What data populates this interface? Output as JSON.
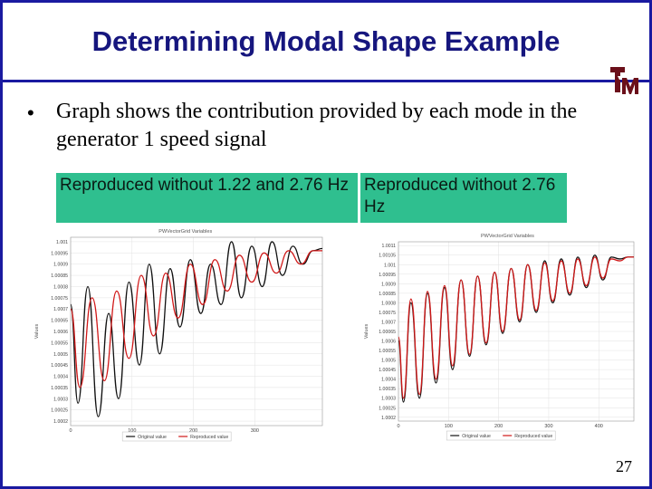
{
  "slide": {
    "title": "Determining Modal Shape Example",
    "bullet": "Graph shows the contribution provided by each mode in the generator 1 speed signal",
    "page_number": "27",
    "logo": {
      "icon": "tamu-logo-icon",
      "color": "#6b0f1a"
    },
    "accent_color": "#1a1aa0",
    "label_box_color": "#2fbf8f"
  },
  "labels": {
    "left": "Reproduced without 1.22 and 2.76 Hz",
    "right": "Reproduced without 2.76 Hz"
  },
  "chart_data": [
    {
      "type": "line",
      "title": "PWVectorGrid Variables",
      "ylabel": "Values",
      "xlabel": "",
      "x_ticks": [
        "0",
        "100",
        "200",
        "300"
      ],
      "y_ticks": [
        "1.001",
        "1.00095",
        "1.0009",
        "1.00085",
        "1.0008",
        "1.00075",
        "1.0007",
        "1.00065",
        "1.0006",
        "1.00055",
        "1.0005",
        "1.00045",
        "1.0004",
        "1.00035",
        "1.0003",
        "1.00025",
        "1.0002"
      ],
      "xlim": [
        0,
        410
      ],
      "ylim": [
        1.00018,
        1.00102
      ],
      "grid": true,
      "legend": [
        "Original value",
        "Reproduced value"
      ],
      "legend_position": "bottom",
      "series": [
        {
          "name": "Original value",
          "color": "#111111",
          "x": [
            0,
            12,
            28,
            45,
            62,
            78,
            95,
            112,
            128,
            145,
            162,
            178,
            195,
            212,
            228,
            245,
            262,
            278,
            295,
            312,
            328,
            345,
            362,
            378,
            395,
            410
          ],
          "y": [
            1.00072,
            1.00028,
            1.0008,
            1.00022,
            1.00068,
            1.0003,
            1.00082,
            1.00045,
            1.0009,
            1.0005,
            1.00088,
            1.00062,
            1.00092,
            1.00068,
            1.0009,
            1.00072,
            1.001,
            1.00075,
            1.00098,
            1.0008,
            1.001,
            1.00085,
            1.00098,
            1.0009,
            1.00096,
            1.00097
          ]
        },
        {
          "name": "Reproduced value",
          "color": "#d01818",
          "x": [
            0,
            15,
            35,
            55,
            75,
            95,
            115,
            135,
            155,
            175,
            195,
            215,
            235,
            255,
            275,
            295,
            315,
            335,
            355,
            375,
            395,
            410
          ],
          "y": [
            1.0007,
            1.00035,
            1.00075,
            1.00038,
            1.00078,
            1.00048,
            1.00085,
            1.00058,
            1.00086,
            1.00066,
            1.0009,
            1.00072,
            1.00092,
            1.00078,
            1.00094,
            1.00082,
            1.00095,
            1.00086,
            1.00096,
            1.0009,
            1.00096,
            1.00096
          ]
        }
      ]
    },
    {
      "type": "line",
      "title": "PWVectorGrid Variables",
      "ylabel": "Values",
      "xlabel": "",
      "x_ticks": [
        "0",
        "100",
        "200",
        "300",
        "400"
      ],
      "y_ticks": [
        "1.0011",
        "1.00105",
        "1.001",
        "1.00095",
        "1.0009",
        "1.00085",
        "1.0008",
        "1.00075",
        "1.0007",
        "1.00065",
        "1.0006",
        "1.00055",
        "1.0005",
        "1.00045",
        "1.0004",
        "1.00035",
        "1.0003",
        "1.00025",
        "1.0002"
      ],
      "xlim": [
        0,
        470
      ],
      "ylim": [
        1.00018,
        1.00112
      ],
      "grid": true,
      "legend": [
        "Original value",
        "Reproduced value"
      ],
      "legend_position": "bottom",
      "series": [
        {
          "name": "Original value",
          "color": "#111111",
          "x": [
            0,
            10,
            25,
            42,
            58,
            75,
            92,
            108,
            125,
            142,
            158,
            175,
            192,
            208,
            225,
            242,
            258,
            275,
            292,
            308,
            325,
            342,
            358,
            375,
            392,
            408,
            425,
            442,
            458,
            470
          ],
          "y": [
            1.0006,
            1.00028,
            1.0008,
            1.0003,
            1.00085,
            1.00038,
            1.00088,
            1.00045,
            1.00092,
            1.00052,
            1.00094,
            1.00058,
            1.00096,
            1.00064,
            1.00098,
            1.0007,
            1.001,
            1.00075,
            1.00102,
            1.0008,
            1.00103,
            1.00084,
            1.00104,
            1.00088,
            1.00105,
            1.00092,
            1.00104,
            1.00103,
            1.00104,
            1.00104
          ]
        },
        {
          "name": "Reproduced value",
          "color": "#d01818",
          "x": [
            0,
            10,
            25,
            42,
            58,
            75,
            92,
            108,
            125,
            142,
            158,
            175,
            192,
            208,
            225,
            242,
            258,
            275,
            292,
            308,
            325,
            342,
            358,
            375,
            392,
            408,
            425,
            442,
            458,
            470
          ],
          "y": [
            1.00062,
            1.0003,
            1.00082,
            1.00032,
            1.00086,
            1.0004,
            1.00089,
            1.00047,
            1.00092,
            1.00053,
            1.00094,
            1.00059,
            1.00096,
            1.00065,
            1.00098,
            1.00071,
            1.001,
            1.00076,
            1.00101,
            1.00081,
            1.00102,
            1.00085,
            1.00103,
            1.00089,
            1.00104,
            1.00093,
            1.00103,
            1.00102,
            1.00104,
            1.00104
          ]
        }
      ]
    }
  ]
}
